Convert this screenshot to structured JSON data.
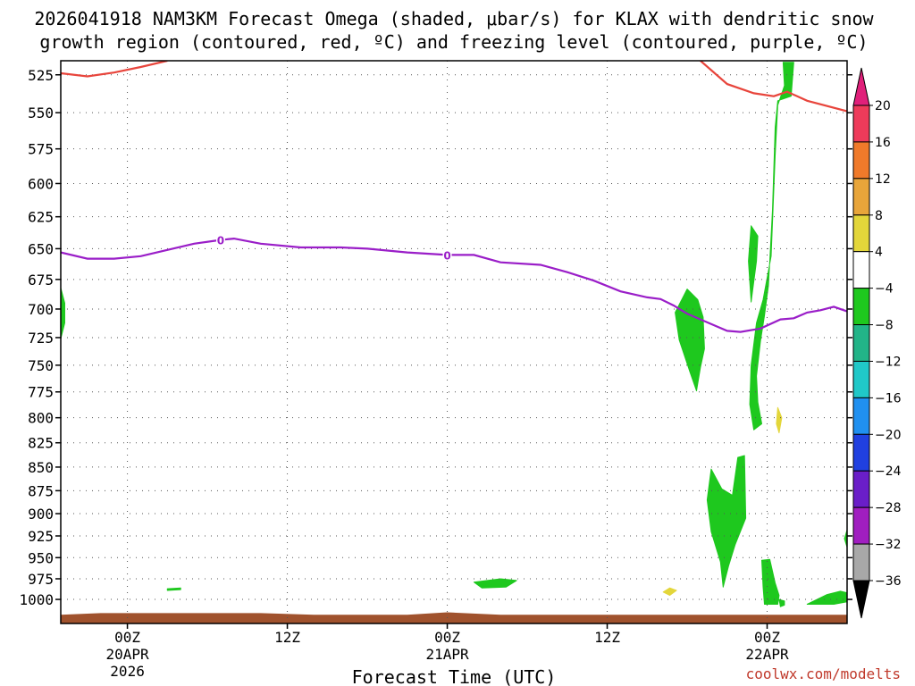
{
  "chart_data": {
    "type": "heatmap",
    "title_line1": "2026041918 NAM3KM Forecast Omega (shaded, μbar/s) for KLAX with dendritic snow",
    "title_line2": "growth region (contoured, red, ºC) and freezing level (contoured, purple, ºC)",
    "xlabel": "Forecast Time (UTC)",
    "credit": "coolwx.com/modelts",
    "y_axis": {
      "unit": "hPa",
      "scale": "log-pressure",
      "ticks": [
        525,
        550,
        575,
        600,
        625,
        650,
        675,
        700,
        725,
        750,
        775,
        800,
        825,
        850,
        875,
        900,
        925,
        950,
        975,
        1000
      ],
      "range": [
        1030,
        516
      ]
    },
    "x_axis": {
      "range_hours": [
        -5,
        54
      ],
      "ticks": [
        {
          "hour": 0,
          "lines": [
            "00Z",
            "20APR",
            "2026"
          ]
        },
        {
          "hour": 12,
          "lines": [
            "12Z"
          ]
        },
        {
          "hour": 24,
          "lines": [
            "00Z",
            "21APR"
          ]
        },
        {
          "hour": 36,
          "lines": [
            "12Z"
          ]
        },
        {
          "hour": 48,
          "lines": [
            "00Z",
            "22APR"
          ]
        }
      ]
    },
    "colorbar": {
      "labels": [
        "20",
        "16",
        "12",
        "8",
        "4",
        "−4",
        "−8",
        "−12",
        "−16",
        "−20",
        "−24",
        "−28",
        "−32",
        "−36"
      ],
      "bins": [
        {
          "color": "#ee3b5a",
          "range": [
            16,
            20
          ]
        },
        {
          "color": "#f07a2a",
          "range": [
            12,
            16
          ]
        },
        {
          "color": "#e8a53a",
          "range": [
            8,
            12
          ]
        },
        {
          "color": "#e3d63a",
          "range": [
            4,
            8
          ]
        },
        {
          "color": "#ffffff",
          "range": [
            -4,
            4
          ]
        },
        {
          "color": "#1ec81e",
          "range": [
            -8,
            -4
          ]
        },
        {
          "color": "#22b488",
          "range": [
            -12,
            -8
          ]
        },
        {
          "color": "#20c8c8",
          "range": [
            -16,
            -12
          ]
        },
        {
          "color": "#2090f0",
          "range": [
            -20,
            -16
          ]
        },
        {
          "color": "#2040e0",
          "range": [
            -24,
            -20
          ]
        },
        {
          "color": "#6a1ec8",
          "range": [
            -28,
            -24
          ]
        },
        {
          "color": "#a01ec0",
          "range": [
            -32,
            -28
          ]
        },
        {
          "color": "#a8a8a8",
          "range": [
            -36,
            -32
          ]
        }
      ],
      "top_arrow_color": "#e0207a",
      "bottom_arrow_color": "#000000"
    },
    "dgz_contour": {
      "color": "#e8453c",
      "segments": [
        [
          [
            -5,
            524
          ],
          [
            -3,
            526
          ],
          [
            -1,
            523.5
          ],
          [
            1,
            520
          ],
          [
            3,
            516
          ]
        ],
        [
          [
            43,
            516
          ],
          [
            45,
            531
          ],
          [
            47,
            537
          ],
          [
            48.5,
            539
          ],
          [
            49.5,
            536
          ],
          [
            51,
            542
          ],
          [
            54,
            549
          ]
        ]
      ]
    },
    "freezing_level": {
      "color": "#9a1ec8",
      "label": "0",
      "label_hours": [
        7,
        24
      ],
      "points": [
        [
          -5,
          653
        ],
        [
          -3,
          658
        ],
        [
          -1,
          658
        ],
        [
          1,
          656
        ],
        [
          3,
          651
        ],
        [
          5,
          646
        ],
        [
          7,
          643
        ],
        [
          8,
          642
        ],
        [
          10,
          646
        ],
        [
          13,
          649
        ],
        [
          16,
          649
        ],
        [
          18,
          650
        ],
        [
          21,
          653
        ],
        [
          24,
          655
        ],
        [
          26,
          655
        ],
        [
          28,
          661
        ],
        [
          31,
          663
        ],
        [
          33,
          669
        ],
        [
          35,
          676
        ],
        [
          37,
          685
        ],
        [
          39,
          690
        ],
        [
          40,
          691.5
        ],
        [
          41,
          697
        ],
        [
          42,
          704
        ],
        [
          44,
          714
        ],
        [
          45,
          719
        ],
        [
          46,
          720
        ],
        [
          47.5,
          717
        ],
        [
          49,
          709
        ],
        [
          50,
          708
        ],
        [
          51,
          703
        ],
        [
          52,
          701
        ],
        [
          53,
          698
        ],
        [
          54,
          702
        ]
      ]
    },
    "omega_regions": [
      {
        "value_bin": "-4 to -8",
        "color": "#1ec81e",
        "points": [
          [
            -5,
            682
          ],
          [
            -4.7,
            695
          ],
          [
            -4.7,
            712
          ],
          [
            -5,
            726
          ]
        ]
      },
      {
        "value_bin": "-4 to -8",
        "color": "#1ec81e",
        "points": [
          [
            42,
            683
          ],
          [
            42.8,
            692
          ],
          [
            43.2,
            707
          ],
          [
            43.3,
            735
          ],
          [
            43,
            752
          ],
          [
            42.7,
            774
          ],
          [
            42.2,
            756
          ],
          [
            41.4,
            727
          ],
          [
            41.1,
            703
          ]
        ]
      },
      {
        "value_bin": "-4 to -8",
        "color": "#1ec81e",
        "points": [
          [
            46.8,
            632
          ],
          [
            47.3,
            640
          ],
          [
            47.2,
            660
          ],
          [
            46.8,
            694
          ],
          [
            46.6,
            660
          ]
        ]
      },
      {
        "value_bin": "-4 to -8",
        "color": "#1ec81e",
        "points": [
          [
            49.2,
            517
          ],
          [
            50,
            517
          ],
          [
            49.8,
            539
          ],
          [
            48.8,
            542
          ],
          [
            48.6,
            560
          ],
          [
            48.4,
            620
          ],
          [
            48.1,
            680
          ],
          [
            47.8,
            706
          ],
          [
            47.5,
            728
          ],
          [
            47.2,
            760
          ],
          [
            47.3,
            785
          ],
          [
            47.6,
            806
          ],
          [
            47,
            812
          ],
          [
            46.7,
            787
          ],
          [
            46.8,
            750
          ],
          [
            47.2,
            712
          ],
          [
            47.7,
            692
          ],
          [
            48.3,
            656
          ],
          [
            48.6,
            580
          ],
          [
            48.8,
            545
          ],
          [
            49.3,
            532
          ]
        ]
      },
      {
        "value_bin": "-4 to -8",
        "color": "#1ec81e",
        "points": [
          [
            43.8,
            852
          ],
          [
            44.6,
            873
          ],
          [
            45.4,
            880
          ],
          [
            45.8,
            840
          ],
          [
            46.3,
            838
          ],
          [
            46.4,
            905
          ],
          [
            45.6,
            935
          ],
          [
            45.1,
            960
          ],
          [
            44.7,
            985
          ],
          [
            44.5,
            955
          ],
          [
            43.8,
            920
          ],
          [
            43.5,
            885
          ]
        ]
      },
      {
        "value_bin": "-4 to -8",
        "color": "#1ec81e",
        "points": [
          [
            47.6,
            953
          ],
          [
            48.2,
            952
          ],
          [
            48.6,
            980
          ],
          [
            48.9,
            995
          ],
          [
            48.8,
            1006
          ],
          [
            47.8,
            1006
          ],
          [
            47.7,
            985
          ]
        ]
      },
      {
        "value_bin": "-4 to -8",
        "color": "#1ec81e",
        "points": [
          [
            49.3,
            1007
          ],
          [
            49.3,
            1002
          ],
          [
            48.9,
            1000
          ],
          [
            49,
            1009
          ]
        ]
      },
      {
        "value_bin": "-4 to -8",
        "color": "#1ec81e",
        "points": [
          [
            53.8,
            928
          ],
          [
            54,
            918
          ],
          [
            54,
            938
          ]
        ]
      },
      {
        "value_bin": "-4 to -8",
        "color": "#1ec81e",
        "points": [
          [
            51,
            1006
          ],
          [
            52.5,
            994
          ],
          [
            53.5,
            990
          ],
          [
            54,
            992
          ],
          [
            54,
            1003
          ],
          [
            53,
            1006
          ]
        ]
      },
      {
        "value_bin": "-4 to -8",
        "color": "#1ec81e",
        "points": [
          [
            26,
            979
          ],
          [
            28,
            975
          ],
          [
            29.2,
            977
          ],
          [
            28.4,
            985
          ],
          [
            26.6,
            986
          ]
        ]
      },
      {
        "value_bin": "-4 to -8",
        "color": "#1ec81e",
        "points": [
          [
            3,
            987
          ],
          [
            4,
            986
          ],
          [
            4,
            988
          ],
          [
            3,
            989
          ]
        ]
      },
      {
        "value_bin": "4 to 8",
        "color": "#e3d63a",
        "points": [
          [
            40.7,
            986
          ],
          [
            41.2,
            989
          ],
          [
            40.7,
            995
          ],
          [
            40.2,
            991
          ]
        ]
      },
      {
        "value_bin": "4 to 8",
        "color": "#e3d63a",
        "points": [
          [
            48.8,
            790
          ],
          [
            49.1,
            800
          ],
          [
            48.9,
            815
          ],
          [
            48.7,
            806
          ]
        ]
      }
    ],
    "terrain_color": "#a0522d",
    "grid": "dotted"
  }
}
